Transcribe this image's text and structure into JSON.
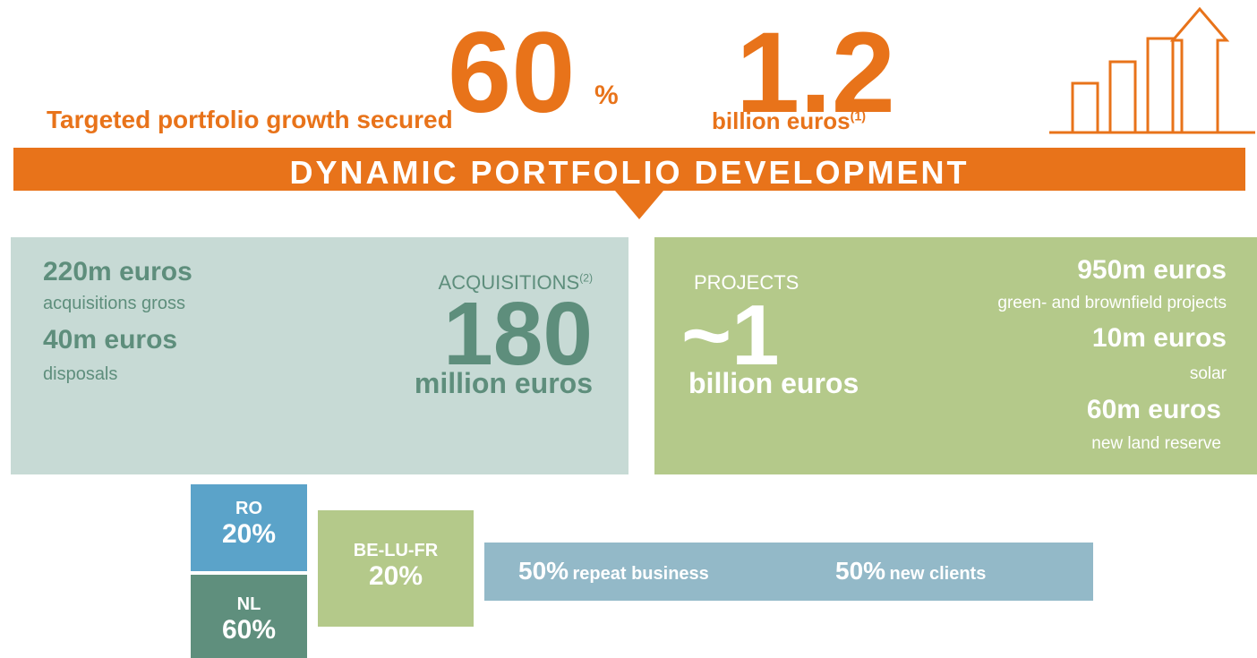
{
  "header": {
    "growth": {
      "value": "60",
      "unit": "%",
      "label": "Targeted portfolio growth secured"
    },
    "total": {
      "value": "1.2",
      "label": "billion euros",
      "note": "(1)"
    }
  },
  "banner": "DYNAMIC PORTFOLIO DEVELOPMENT",
  "acquisitions": {
    "items": [
      {
        "amount": "220m euros",
        "label": "acquisitions gross"
      },
      {
        "amount": "40m euros",
        "label": "disposals"
      }
    ],
    "title": "ACQUISITIONS",
    "note": "(2)",
    "value": "180",
    "unit": "million euros"
  },
  "projects": {
    "title": "PROJECTS",
    "value": "~1",
    "unit": "billion euros",
    "items": [
      {
        "amount": "950m euros",
        "label": "green- and brownfield projects"
      },
      {
        "amount": "10m euros",
        "label": "solar"
      },
      {
        "amount": "60m euros",
        "label": "new land reserve"
      }
    ]
  },
  "regions": [
    {
      "name": "RO",
      "share": "20%"
    },
    {
      "name": "NL",
      "share": "60%"
    },
    {
      "name": "BE-LU-FR",
      "share": "20%"
    }
  ],
  "clients": [
    {
      "share": "50%",
      "label": "repeat business"
    },
    {
      "share": "50%",
      "label": "new clients"
    }
  ]
}
